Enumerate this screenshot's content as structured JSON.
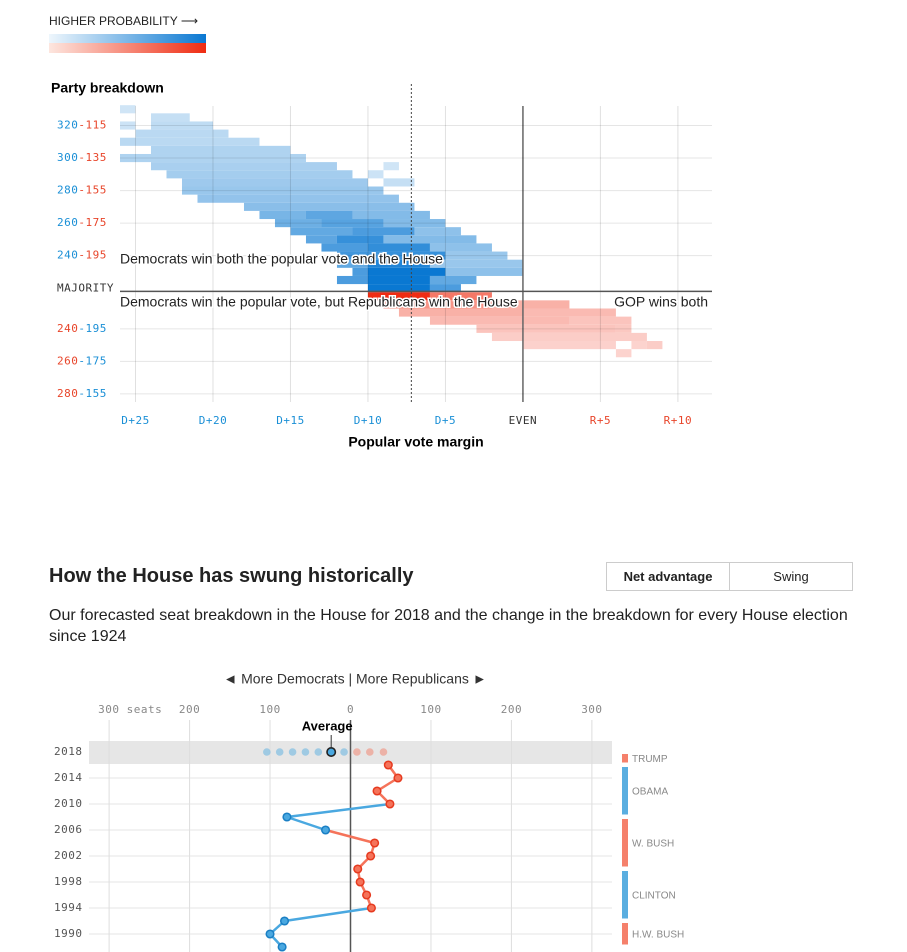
{
  "chart_data": [
    {
      "type": "heatmap",
      "title": "Party breakdown",
      "legend_label": "HIGHER PROBABILITY ⟶",
      "x_label": "Popular vote margin",
      "colors": {
        "dem": "#0a78d2",
        "rep": "#ef2c12"
      },
      "xlim": [
        -26,
        12.2
      ],
      "xticks": [
        {
          "value": -25,
          "label": "D+25"
        },
        {
          "value": -20,
          "label": "D+20"
        },
        {
          "value": -15,
          "label": "D+15"
        },
        {
          "value": -10,
          "label": "D+10"
        },
        {
          "value": -5,
          "label": "D+5"
        },
        {
          "value": 0,
          "label": "EVEN"
        },
        {
          "value": 5,
          "label": "R+5"
        },
        {
          "value": 10,
          "label": "R+10"
        }
      ],
      "ylim": [
        150,
        332
      ],
      "yticks": [
        {
          "value": 320,
          "label": "320-115"
        },
        {
          "value": 300,
          "label": "300-135"
        },
        {
          "value": 280,
          "label": "280-155"
        },
        {
          "value": 260,
          "label": "260-175"
        },
        {
          "value": 240,
          "label": "240-195"
        },
        {
          "value": 195,
          "label": "240-195"
        },
        {
          "value": 175,
          "label": "260-175"
        },
        {
          "value": 155,
          "label": "280-155"
        }
      ],
      "majority": {
        "value": 218,
        "label": "MAJORITY"
      },
      "forecast_margin": -7.2,
      "annotations": [
        "Democrats win both the popular vote and the House",
        "Democrats win the popular vote, but Republicans win the House",
        "GOP wins both"
      ],
      "rows": [
        {
          "seats": 330,
          "segments": [
            [
              -26,
              -25,
              0.1
            ]
          ]
        },
        {
          "seats": 325,
          "segments": [
            [
              -24,
              -21.5,
              0.15
            ]
          ]
        },
        {
          "seats": 320,
          "segments": [
            [
              -26,
              -25,
              0.12
            ],
            [
              -24,
              -20,
              0.18
            ]
          ]
        },
        {
          "seats": 315,
          "segments": [
            [
              -25,
              -19,
              0.2
            ]
          ]
        },
        {
          "seats": 310,
          "segments": [
            [
              -26,
              -17,
              0.2
            ]
          ]
        },
        {
          "seats": 305,
          "segments": [
            [
              -24,
              -15,
              0.25
            ]
          ]
        },
        {
          "seats": 300,
          "segments": [
            [
              -26,
              -14,
              0.25
            ]
          ]
        },
        {
          "seats": 295,
          "segments": [
            [
              -24,
              -12,
              0.28
            ],
            [
              -9,
              -8,
              0.1
            ]
          ]
        },
        {
          "seats": 290,
          "segments": [
            [
              -23,
              -11,
              0.3
            ],
            [
              -10,
              -9,
              0.12
            ]
          ]
        },
        {
          "seats": 285,
          "segments": [
            [
              -22,
              -10,
              0.33
            ],
            [
              -9,
              -7,
              0.15
            ]
          ]
        },
        {
          "seats": 280,
          "segments": [
            [
              -22,
              -9,
              0.35
            ]
          ]
        },
        {
          "seats": 275,
          "segments": [
            [
              -21,
              -8,
              0.38
            ]
          ]
        },
        {
          "seats": 270,
          "segments": [
            [
              -18,
              -7,
              0.42
            ]
          ]
        },
        {
          "seats": 265,
          "segments": [
            [
              -17,
              -14,
              0.5
            ],
            [
              -14,
              -11,
              0.62
            ],
            [
              -11,
              -6,
              0.45
            ]
          ]
        },
        {
          "seats": 260,
          "segments": [
            [
              -16,
              -13,
              0.55
            ],
            [
              -13,
              -9,
              0.65
            ],
            [
              -9,
              -5,
              0.45
            ]
          ]
        },
        {
          "seats": 255,
          "segments": [
            [
              -15,
              -11,
              0.6
            ],
            [
              -11,
              -7,
              0.7
            ],
            [
              -7,
              -4,
              0.4
            ]
          ]
        },
        {
          "seats": 250,
          "segments": [
            [
              -14,
              -12,
              0.62
            ],
            [
              -12,
              -9,
              0.8
            ],
            [
              -9,
              -3,
              0.45
            ]
          ]
        },
        {
          "seats": 245,
          "segments": [
            [
              -13,
              -10,
              0.7
            ],
            [
              -10,
              -6,
              0.82
            ],
            [
              -6,
              -2,
              0.4
            ]
          ]
        },
        {
          "seats": 240,
          "segments": [
            [
              -12,
              -9,
              0.75
            ],
            [
              -9,
              -5,
              0.8
            ],
            [
              -5,
              -1,
              0.35
            ]
          ]
        },
        {
          "seats": 235,
          "segments": [
            [
              -12,
              -10,
              0.6
            ],
            [
              -10,
              -6,
              0.9
            ],
            [
              -6,
              0,
              0.35
            ]
          ]
        },
        {
          "seats": 230,
          "segments": [
            [
              -11,
              -10,
              0.7
            ],
            [
              -10,
              -5,
              1
            ],
            [
              -5,
              0,
              0.4
            ]
          ]
        },
        {
          "seats": 225,
          "segments": [
            [
              -12,
              -10,
              0.7
            ],
            [
              -10,
              -6,
              1
            ],
            [
              -6,
              -3,
              0.6
            ]
          ]
        },
        {
          "seats": 220,
          "segments": [
            [
              -10,
              -6,
              1
            ],
            [
              -6,
              -4,
              0.7
            ]
          ]
        },
        {
          "seats": 215,
          "segments": [
            [
              -10,
              -6,
              1
            ],
            [
              -6,
              -2,
              0.6
            ]
          ]
        },
        {
          "seats": 210,
          "segments": [
            [
              -9,
              -2,
              0.45
            ],
            [
              -2,
              3,
              0.3
            ]
          ]
        },
        {
          "seats": 205,
          "segments": [
            [
              -8,
              0,
              0.3
            ],
            [
              0,
              6,
              0.25
            ]
          ]
        },
        {
          "seats": 200,
          "segments": [
            [
              -6,
              3,
              0.25
            ],
            [
              3,
              7,
              0.2
            ]
          ]
        },
        {
          "seats": 195,
          "segments": [
            [
              -3,
              6,
              0.2
            ],
            [
              6,
              7,
              0.18
            ]
          ]
        },
        {
          "seats": 190,
          "segments": [
            [
              -2,
              8,
              0.15
            ]
          ]
        },
        {
          "seats": 185,
          "segments": [
            [
              0,
              6,
              0.13
            ],
            [
              7,
              8,
              0.12
            ],
            [
              8,
              9,
              0.15
            ]
          ]
        },
        {
          "seats": 180,
          "segments": [
            [
              6,
              7,
              0.12
            ]
          ]
        }
      ]
    },
    {
      "type": "line",
      "title": "How the House has swung historically",
      "subtitle": "Our forecasted seat breakdown in the House for 2018 and the change in the breakdown for every House election since 1924",
      "controls": [
        "Net advantage",
        "Swing"
      ],
      "direction_label": "◄ More Democrats | More Republicans ►",
      "colors": {
        "dem": "#4aa8e0",
        "rep": "#f5735a"
      },
      "forecast": {
        "year": 2018,
        "values": [
          -104,
          -88,
          -72,
          -56,
          -40,
          -8,
          8,
          24,
          41
        ],
        "average": -24,
        "average_label": "Average"
      },
      "x": [
        2016,
        2014,
        2012,
        2010,
        2008,
        2006,
        2004,
        2002,
        2000,
        1998,
        1996,
        1994,
        1992,
        1990,
        1988
      ],
      "values": [
        47,
        59,
        33,
        49,
        -79,
        -31,
        30,
        25,
        9,
        12,
        20,
        26,
        -82,
        -100,
        -85
      ],
      "xlim": [
        -325,
        325
      ],
      "xticks": [
        {
          "value": -300,
          "label": "300 seats"
        },
        {
          "value": -200,
          "label": "200"
        },
        {
          "value": -100,
          "label": "100"
        },
        0,
        100,
        200,
        300
      ],
      "ylim": [
        2020,
        1986
      ],
      "yticks": [
        2018,
        2014,
        2010,
        2006,
        2002,
        1998,
        1994,
        1990
      ],
      "presidents": [
        {
          "name": "TRUMP",
          "from": 2018,
          "to": 2018,
          "color": "#f5806b"
        },
        {
          "name": "OBAMA",
          "from": 2010,
          "to": 2016,
          "color": "#5aaee0"
        },
        {
          "name": "W. BUSH",
          "from": 2002,
          "to": 2008,
          "color": "#f5806b"
        },
        {
          "name": "CLINTON",
          "from": 1994,
          "to": 2000,
          "color": "#5aaee0"
        },
        {
          "name": "H.W. BUSH",
          "from": 1990,
          "to": 1992,
          "color": "#f5806b"
        }
      ]
    }
  ]
}
